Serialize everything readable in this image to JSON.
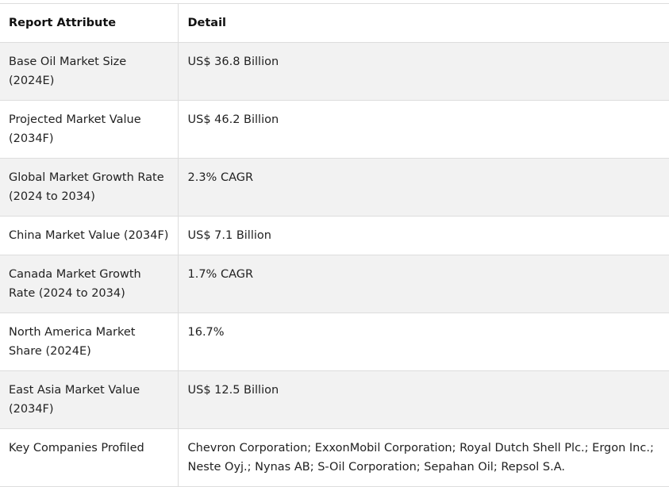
{
  "table": {
    "headers": [
      "Report Attribute",
      "Detail"
    ],
    "rows": [
      {
        "attribute": "Base Oil Market Size (2024E)",
        "detail": "US$ 36.8 Billion"
      },
      {
        "attribute": "Projected Market Value (2034F)",
        "detail": "US$ 46.2 Billion"
      },
      {
        "attribute": "Global Market Growth Rate (2024 to 2034)",
        "detail": "2.3% CAGR"
      },
      {
        "attribute": "China Market Value (2034F)",
        "detail": "US$ 7.1 Billion"
      },
      {
        "attribute": "Canada Market Growth Rate (2024 to 2034)",
        "detail": "1.7% CAGR"
      },
      {
        "attribute": "North America Market Share (2024E)",
        "detail": "16.7%"
      },
      {
        "attribute": "East Asia Market Value (2034F)",
        "detail": "US$ 12.5 Billion"
      },
      {
        "attribute": "Key Companies Profiled",
        "detail": "Chevron Corporation; ExxonMobil Corporation; Royal Dutch Shell Plc.; Ergon Inc.; Neste Oyj.; Nynas AB; S-Oil Corporation; Sepahan Oil; Repsol S.A."
      }
    ]
  }
}
